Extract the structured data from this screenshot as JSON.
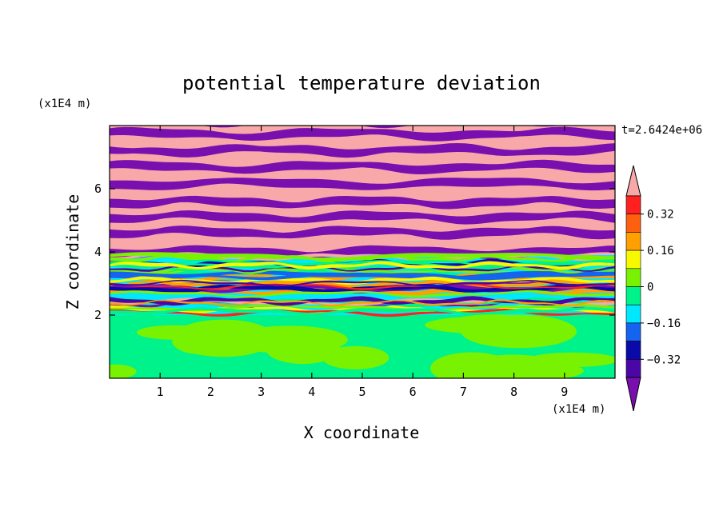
{
  "chart_data": {
    "type": "heatmap",
    "title": "potential temperature deviation",
    "xlabel": "X coordinate",
    "ylabel": "Z coordinate",
    "x_units": "(x1E4 m)",
    "y_units": "(x1E4 m)",
    "time_label": "t=2.6424e+06",
    "xlim": [
      0,
      10
    ],
    "ylim": [
      0,
      8
    ],
    "x_ticks": [
      "1",
      "2",
      "3",
      "4",
      "5",
      "6",
      "7",
      "8",
      "9"
    ],
    "y_ticks": [
      "2",
      "4",
      "6"
    ],
    "grid": false,
    "legend_position": "right",
    "colorbar": {
      "labels": [
        "0.32",
        "0.16",
        "0",
        "-0.16",
        "-0.32"
      ],
      "levels": [
        -0.4,
        -0.32,
        -0.24,
        -0.16,
        -0.08,
        0,
        0.08,
        0.16,
        0.24,
        0.32,
        0.4
      ],
      "colors": [
        "#7a0fb0",
        "#4b06a6",
        "#0a0aa8",
        "#1464f0",
        "#00e8ff",
        "#00f28a",
        "#78f200",
        "#f8f800",
        "#ffa000",
        "#ff6010",
        "#ff2020",
        "#f8a8a8"
      ],
      "extend": "both"
    },
    "field_layers": [
      {
        "zmin": 0,
        "zmax": 2.0,
        "dominant": "#00f28a",
        "secondary": "#78f200",
        "pattern": "turbulent lower layer, values near 0"
      },
      {
        "zmin": 2.0,
        "zmax": 3.9,
        "dominant": "#00e8ff",
        "secondary": "#f8a8a8",
        "pattern": "mixed thin horizontal filaments, -0.4 to 0.4"
      },
      {
        "zmin": 3.9,
        "zmax": 8.0,
        "dominant": "#7a0fb0",
        "secondary": "#f8a8a8",
        "pattern": "alternating horizontal bands at extreme values"
      }
    ]
  }
}
